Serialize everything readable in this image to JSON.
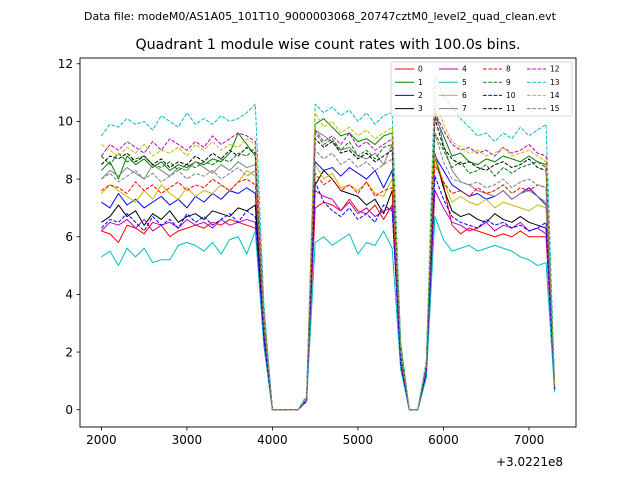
{
  "figure": {
    "suptitle": "Data file: modeM0/AS1A05_101T10_9000003068_20747cztM0_level2_quad_clean.evt"
  },
  "chart_data": {
    "type": "line",
    "title": "Quadrant 1 module wise count rates with 100.0s bins.",
    "xlabel": "",
    "ylabel": "",
    "x_offset_label": "+3.0221e8",
    "xlim": [
      1750,
      7550
    ],
    "ylim": [
      -0.6,
      12.2
    ],
    "xticks": [
      2000,
      3000,
      4000,
      5000,
      6000,
      7000
    ],
    "yticks": [
      0,
      2,
      4,
      6,
      8,
      10,
      12
    ],
    "grid": false,
    "legend_position": "top-right",
    "x": [
      2000,
      2100,
      2200,
      2300,
      2400,
      2500,
      2600,
      2700,
      2800,
      2900,
      3000,
      3100,
      3200,
      3300,
      3400,
      3500,
      3600,
      3700,
      3800,
      3900,
      4000,
      4100,
      4200,
      4300,
      4400,
      4500,
      4600,
      4700,
      4800,
      4900,
      5000,
      5100,
      5200,
      5300,
      5400,
      5500,
      5600,
      5700,
      5800,
      5900,
      6000,
      6100,
      6200,
      6300,
      6400,
      6500,
      6600,
      6700,
      6800,
      6900,
      7000,
      7100,
      7200,
      7300
    ],
    "series": [
      {
        "name": "0",
        "color": "#ff0000",
        "dash": "solid",
        "values": [
          6.2,
          6.1,
          5.8,
          6.4,
          6.3,
          6.1,
          6.5,
          6.4,
          6.0,
          6.2,
          6.3,
          6.4,
          6.3,
          6.5,
          6.4,
          6.6,
          6.5,
          6.4,
          6.3,
          2.3,
          0.0,
          0.0,
          0.0,
          0.0,
          0.3,
          7.0,
          7.2,
          7.1,
          6.9,
          7.3,
          6.9,
          6.8,
          7.1,
          6.6,
          7.1,
          1.5,
          0.0,
          0.0,
          1.3,
          8.9,
          7.8,
          6.4,
          6.1,
          6.3,
          6.2,
          6.1,
          6.0,
          6.1,
          6.0,
          6.2,
          6.0,
          6.0,
          6.0,
          0.7
        ]
      },
      {
        "name": "1",
        "color": "#008000",
        "dash": "solid",
        "values": [
          8.3,
          8.6,
          8.0,
          8.8,
          8.5,
          8.7,
          8.4,
          8.6,
          8.3,
          8.5,
          8.4,
          8.6,
          8.5,
          8.7,
          8.6,
          8.9,
          9.6,
          9.2,
          8.8,
          3.1,
          0.0,
          0.0,
          0.0,
          0.0,
          0.4,
          9.9,
          10.1,
          9.8,
          9.5,
          9.6,
          9.3,
          9.4,
          9.2,
          9.5,
          9.6,
          2.3,
          0.0,
          0.0,
          1.6,
          10.2,
          9.5,
          8.8,
          8.9,
          8.6,
          8.5,
          8.7,
          8.6,
          8.8,
          8.7,
          8.6,
          8.8,
          8.6,
          8.5,
          0.7
        ]
      },
      {
        "name": "2",
        "color": "#0000ff",
        "dash": "solid",
        "values": [
          7.2,
          7.0,
          7.5,
          7.1,
          7.3,
          7.0,
          7.2,
          7.4,
          7.1,
          7.3,
          7.0,
          7.4,
          7.2,
          7.5,
          7.3,
          7.6,
          7.5,
          7.7,
          7.5,
          2.8,
          0.0,
          0.0,
          0.0,
          0.0,
          0.4,
          8.6,
          8.3,
          8.4,
          8.1,
          8.4,
          8.2,
          8.0,
          8.3,
          7.7,
          8.3,
          1.9,
          0.0,
          0.0,
          1.5,
          8.8,
          8.3,
          7.8,
          7.6,
          7.4,
          7.5,
          7.3,
          7.4,
          7.6,
          7.3,
          7.5,
          7.7,
          7.4,
          7.1,
          0.8
        ]
      },
      {
        "name": "3",
        "color": "#000000",
        "dash": "solid",
        "values": [
          6.5,
          6.7,
          7.1,
          6.7,
          6.9,
          6.4,
          6.8,
          6.6,
          6.9,
          6.5,
          6.7,
          6.8,
          6.6,
          6.9,
          6.8,
          6.7,
          7.0,
          6.9,
          7.1,
          2.6,
          0.0,
          0.0,
          0.0,
          0.0,
          0.3,
          7.8,
          8.3,
          8.0,
          7.6,
          7.5,
          7.4,
          7.1,
          7.3,
          6.8,
          7.6,
          1.7,
          0.0,
          0.0,
          1.3,
          8.8,
          7.7,
          6.9,
          6.7,
          6.8,
          6.6,
          6.5,
          6.8,
          6.6,
          6.5,
          6.7,
          6.5,
          6.4,
          6.3,
          0.7
        ]
      },
      {
        "name": "4",
        "color": "#bf00bf",
        "dash": "solid",
        "values": [
          6.2,
          6.5,
          6.4,
          6.6,
          6.3,
          6.6,
          6.2,
          6.4,
          6.5,
          6.3,
          6.6,
          6.4,
          6.5,
          6.3,
          6.6,
          6.4,
          6.5,
          6.6,
          6.5,
          2.4,
          0.0,
          0.0,
          0.0,
          0.0,
          0.3,
          7.6,
          7.4,
          7.3,
          6.9,
          7.2,
          6.8,
          7.0,
          6.7,
          6.9,
          7.0,
          1.6,
          0.0,
          0.0,
          1.2,
          7.6,
          7.0,
          6.5,
          6.4,
          6.2,
          6.3,
          6.5,
          6.2,
          6.4,
          6.3,
          6.5,
          6.2,
          6.3,
          6.1,
          0.7
        ]
      },
      {
        "name": "5",
        "color": "#00bfbf",
        "dash": "solid",
        "values": [
          5.3,
          5.5,
          5.0,
          5.6,
          5.3,
          5.6,
          5.1,
          5.2,
          5.2,
          5.7,
          5.8,
          5.7,
          5.5,
          5.8,
          5.4,
          5.9,
          6.0,
          5.4,
          6.2,
          2.2,
          0.0,
          0.0,
          0.0,
          0.0,
          0.3,
          5.8,
          6.0,
          5.7,
          5.9,
          6.1,
          5.4,
          5.8,
          5.7,
          6.2,
          5.6,
          1.4,
          0.0,
          0.0,
          1.1,
          6.7,
          5.9,
          5.5,
          5.6,
          5.7,
          5.5,
          5.6,
          5.7,
          5.6,
          5.5,
          5.3,
          5.2,
          5.0,
          5.1,
          0.6
        ]
      },
      {
        "name": "6",
        "color": "#bfbf00",
        "dash": "solid",
        "values": [
          7.5,
          7.8,
          7.6,
          7.4,
          7.2,
          7.6,
          7.3,
          7.8,
          7.5,
          7.3,
          7.7,
          7.4,
          7.6,
          7.5,
          7.8,
          7.6,
          7.9,
          8.3,
          8.1,
          2.9,
          0.0,
          0.0,
          0.0,
          0.0,
          0.4,
          8.5,
          8.0,
          8.2,
          7.7,
          7.8,
          7.6,
          7.9,
          7.5,
          7.4,
          8.0,
          1.8,
          0.0,
          0.0,
          1.4,
          8.8,
          7.9,
          7.2,
          7.4,
          7.2,
          7.1,
          7.3,
          7.0,
          7.2,
          7.1,
          7.0,
          6.9,
          7.1,
          7.0,
          0.7
        ]
      },
      {
        "name": "7",
        "color": "#808080",
        "dash": "solid",
        "values": [
          8.0,
          8.3,
          8.1,
          8.4,
          8.2,
          8.0,
          8.5,
          8.3,
          8.1,
          8.4,
          8.3,
          8.6,
          8.4,
          8.2,
          8.5,
          8.3,
          8.6,
          8.4,
          8.5,
          3.0,
          0.0,
          0.0,
          0.0,
          0.0,
          0.4,
          9.7,
          9.5,
          9.3,
          9.0,
          9.1,
          8.8,
          8.7,
          8.9,
          8.5,
          9.2,
          2.0,
          0.0,
          0.0,
          1.5,
          10.5,
          9.2,
          8.3,
          7.9,
          7.8,
          7.6,
          7.5,
          7.4,
          7.6,
          7.3,
          7.5,
          7.6,
          7.4,
          7.2,
          0.8
        ]
      },
      {
        "name": "8",
        "color": "#ff0000",
        "dash": "dashed",
        "values": [
          7.6,
          7.8,
          7.7,
          7.5,
          7.9,
          7.6,
          7.8,
          7.5,
          7.7,
          7.9,
          7.6,
          7.8,
          7.7,
          8.0,
          7.8,
          7.6,
          7.9,
          8.0,
          7.8,
          2.9,
          0.0,
          0.0,
          0.0,
          0.0,
          0.4,
          8.2,
          7.8,
          8.0,
          7.6,
          7.8,
          7.5,
          7.9,
          7.4,
          7.6,
          7.7,
          1.8,
          0.0,
          0.0,
          1.4,
          8.5,
          7.9,
          7.5,
          7.6,
          7.4,
          7.7,
          7.5,
          7.6,
          7.8,
          7.5,
          7.7,
          7.6,
          7.8,
          7.7,
          0.8
        ]
      },
      {
        "name": "9",
        "color": "#008000",
        "dash": "dashed",
        "values": [
          8.8,
          8.5,
          8.9,
          8.6,
          8.7,
          8.8,
          8.5,
          8.4,
          8.6,
          8.3,
          8.5,
          8.4,
          8.6,
          8.5,
          8.7,
          8.6,
          8.9,
          8.8,
          9.1,
          3.2,
          0.0,
          0.0,
          0.0,
          0.0,
          0.4,
          9.6,
          9.2,
          9.4,
          9.0,
          9.3,
          8.8,
          9.0,
          8.7,
          9.1,
          9.2,
          2.1,
          0.0,
          0.0,
          1.6,
          9.6,
          9.0,
          8.4,
          8.6,
          8.2,
          8.3,
          8.5,
          8.1,
          8.4,
          8.2,
          8.4,
          8.5,
          8.6,
          8.4,
          0.8
        ]
      },
      {
        "name": "10",
        "color": "#0000ff",
        "dash": "dashed",
        "values": [
          6.3,
          6.6,
          6.5,
          6.8,
          6.5,
          6.2,
          6.7,
          6.4,
          6.6,
          6.3,
          6.8,
          6.5,
          6.7,
          6.4,
          6.6,
          6.8,
          6.5,
          6.9,
          6.7,
          2.5,
          0.0,
          0.0,
          0.0,
          0.0,
          0.3,
          7.9,
          7.2,
          6.9,
          6.7,
          7.0,
          6.6,
          6.8,
          6.5,
          7.1,
          6.9,
          1.6,
          0.0,
          0.0,
          1.3,
          8.1,
          7.3,
          6.7,
          6.5,
          6.4,
          6.3,
          6.6,
          6.4,
          6.5,
          6.3,
          6.4,
          6.2,
          6.3,
          6.5,
          0.7
        ]
      },
      {
        "name": "11",
        "color": "#000000",
        "dash": "dashed",
        "values": [
          8.5,
          8.8,
          8.7,
          8.9,
          8.6,
          8.8,
          8.5,
          8.7,
          8.4,
          8.6,
          8.5,
          8.8,
          8.6,
          8.9,
          8.7,
          9.0,
          8.8,
          9.1,
          8.9,
          3.2,
          0.0,
          0.0,
          0.0,
          0.0,
          0.4,
          9.4,
          9.1,
          9.3,
          8.9,
          9.0,
          8.7,
          8.9,
          8.6,
          8.8,
          9.0,
          2.0,
          0.0,
          0.0,
          1.6,
          10.1,
          9.1,
          8.7,
          8.5,
          8.6,
          8.4,
          8.3,
          8.5,
          8.6,
          8.4,
          8.5,
          8.7,
          8.4,
          8.3,
          0.8
        ]
      },
      {
        "name": "12",
        "color": "#bf00bf",
        "dash": "dashed",
        "values": [
          8.8,
          9.2,
          9.0,
          9.3,
          9.1,
          8.9,
          9.3,
          9.0,
          9.4,
          9.2,
          9.0,
          9.3,
          9.1,
          9.5,
          9.2,
          9.4,
          9.6,
          9.5,
          9.3,
          3.4,
          0.0,
          0.0,
          0.0,
          0.0,
          0.4,
          9.7,
          9.3,
          9.5,
          9.2,
          9.6,
          9.1,
          9.3,
          9.0,
          9.2,
          9.4,
          2.1,
          0.0,
          0.0,
          1.6,
          10.3,
          9.7,
          9.2,
          9.0,
          9.1,
          8.9,
          9.0,
          8.8,
          9.1,
          8.9,
          9.0,
          9.2,
          8.9,
          8.8,
          0.8
        ]
      },
      {
        "name": "13",
        "color": "#00bfbf",
        "dash": "dashed",
        "values": [
          9.5,
          9.9,
          9.8,
          10.1,
          9.9,
          10.0,
          9.7,
          10.2,
          10.0,
          9.8,
          10.3,
          9.9,
          10.1,
          9.9,
          10.2,
          10.0,
          10.1,
          10.3,
          10.6,
          3.7,
          0.0,
          0.0,
          0.0,
          0.0,
          0.5,
          10.6,
          10.3,
          10.5,
          10.2,
          10.4,
          10.0,
          10.3,
          9.9,
          10.2,
          10.3,
          2.3,
          0.0,
          0.0,
          1.7,
          11.6,
          10.9,
          10.5,
          10.1,
          9.8,
          9.5,
          9.6,
          9.3,
          9.6,
          9.4,
          9.8,
          9.5,
          9.7,
          9.9,
          0.9
        ]
      },
      {
        "name": "14",
        "color": "#bfbf00",
        "dash": "dashed",
        "values": [
          9.2,
          9.0,
          8.8,
          9.1,
          8.9,
          9.2,
          8.8,
          9.0,
          8.9,
          9.1,
          8.8,
          9.2,
          9.0,
          9.3,
          9.0,
          9.2,
          9.1,
          9.4,
          9.2,
          3.3,
          0.0,
          0.0,
          0.0,
          0.0,
          0.4,
          10.3,
          9.8,
          10.0,
          9.6,
          9.8,
          9.5,
          9.7,
          9.4,
          9.6,
          9.8,
          2.1,
          0.0,
          0.0,
          1.6,
          10.8,
          9.9,
          9.3,
          9.1,
          8.9,
          9.0,
          8.8,
          8.9,
          9.1,
          8.8,
          8.9,
          9.0,
          8.8,
          8.6,
          0.8
        ]
      },
      {
        "name": "15",
        "color": "#808080",
        "dash": "dashed",
        "values": [
          8.0,
          8.2,
          7.9,
          8.1,
          8.3,
          8.0,
          8.2,
          7.9,
          8.1,
          8.3,
          8.0,
          8.2,
          8.1,
          8.3,
          8.0,
          8.2,
          8.4,
          8.1,
          8.3,
          3.0,
          0.0,
          0.0,
          0.0,
          0.0,
          0.4,
          9.0,
          8.7,
          8.9,
          8.5,
          8.7,
          8.4,
          8.6,
          8.3,
          8.5,
          8.7,
          1.9,
          0.0,
          0.0,
          1.5,
          9.6,
          8.6,
          8.0,
          7.9,
          7.8,
          7.9,
          7.7,
          7.8,
          8.0,
          7.7,
          7.9,
          8.0,
          7.8,
          7.7,
          0.8
        ]
      }
    ]
  }
}
